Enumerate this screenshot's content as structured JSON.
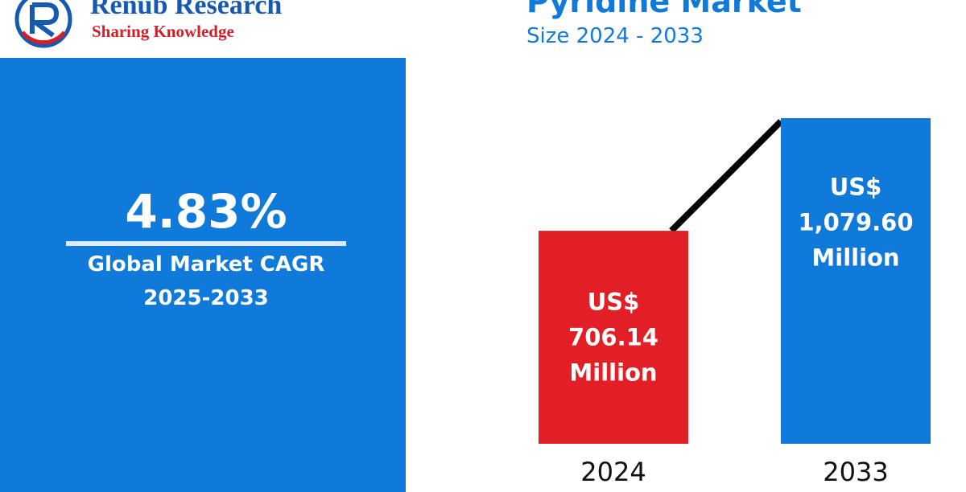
{
  "logo": {
    "name": "Renub Research",
    "tagline": "Sharing Knowledge"
  },
  "header": {
    "title": "Pyridine Market",
    "subtitle": "Size 2024 - 2033"
  },
  "cagr": {
    "value": "4.83%",
    "label": "Global Market CAGR",
    "period": "2025-2033"
  },
  "colors": {
    "panel_blue": "#0f7ad9",
    "bar_red": "#e21e26",
    "bar_blue": "#0f7ad9",
    "trend_line": "#000000",
    "logo_blue": "#1559b0",
    "logo_red": "#d41f28"
  },
  "chart_data": {
    "type": "bar",
    "categories": [
      "2024",
      "2033"
    ],
    "values": [
      706.14,
      1079.6
    ],
    "unit": "US$ Million",
    "data_labels": [
      [
        "US$",
        "706.14",
        "Million"
      ],
      [
        "US$",
        "1,079.60",
        "Million"
      ]
    ],
    "bar_colors": [
      "#e21e26",
      "#0f7ad9"
    ],
    "trend_line": true,
    "grid": false,
    "legend": "none"
  }
}
